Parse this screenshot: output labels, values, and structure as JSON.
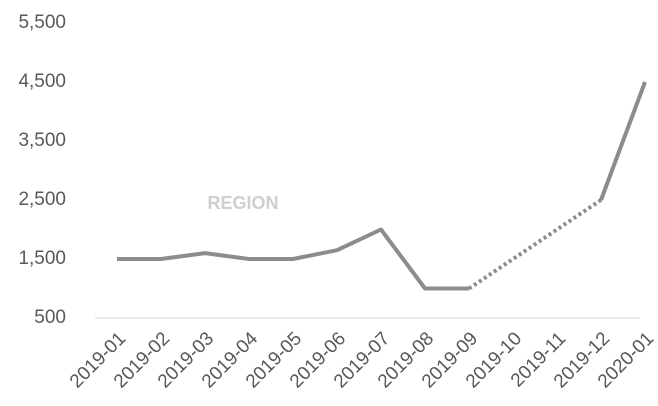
{
  "chart_data": {
    "type": "line",
    "categories": [
      "2019-01",
      "2019-02",
      "2019-03",
      "2019-04",
      "2019-05",
      "2019-06",
      "2019-07",
      "2019-08",
      "2019-09",
      "2019-10",
      "2019-11",
      "2019-12",
      "2020-01"
    ],
    "series": [
      {
        "name": "REGION",
        "color": "#8c8c8c",
        "values": [
          1500,
          1500,
          1600,
          1500,
          1500,
          1650,
          2000,
          1000,
          1000,
          null,
          null,
          2500,
          4500
        ]
      }
    ],
    "ylim": [
      500,
      5500
    ],
    "yticks": [
      {
        "value": 500,
        "label": "500"
      },
      {
        "value": 1500,
        "label": "1,500"
      },
      {
        "value": 2500,
        "label": "2,500"
      },
      {
        "value": 3500,
        "label": "3,500"
      },
      {
        "value": 4500,
        "label": "4,500"
      },
      {
        "value": 5500,
        "label": "5,500"
      }
    ],
    "grid": false
  }
}
